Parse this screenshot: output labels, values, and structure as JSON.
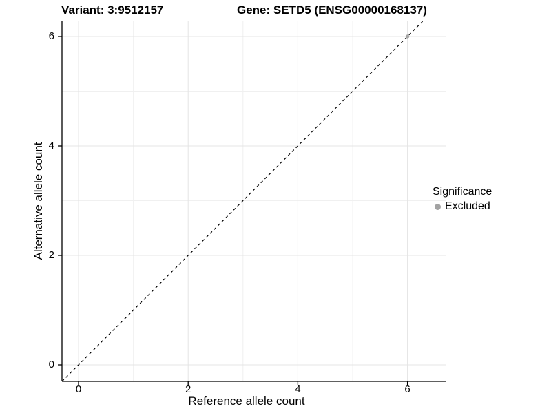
{
  "titles": {
    "variant": "Variant: 3:9512157",
    "gene": "Gene: SETD5 (ENSG00000168137)"
  },
  "chart_data": {
    "type": "scatter",
    "xlabel": "Reference allele count",
    "ylabel": "Alternative allele count",
    "x_ticks": [
      0,
      2,
      4,
      6
    ],
    "y_ticks": [
      0,
      2,
      4,
      6
    ],
    "xlim": [
      -0.3,
      6.7
    ],
    "ylim": [
      -0.3,
      6.3
    ],
    "grid": "major-and-minor",
    "identity_line": {
      "slope": 1,
      "intercept": 0,
      "style": "dashed",
      "color": "#000000"
    },
    "points": [
      {
        "x": 6,
        "y": 6,
        "series": "Excluded"
      }
    ],
    "legend": {
      "title": "Significance",
      "position": "right",
      "items": [
        {
          "label": "Excluded",
          "color": "#a3a3a3"
        }
      ]
    },
    "colors": {
      "axis": "#000000",
      "major_grid": "#e4e4e4",
      "minor_grid": "#f0f0f0",
      "excluded_point": "#a3a3a3",
      "background": "#ffffff"
    }
  }
}
